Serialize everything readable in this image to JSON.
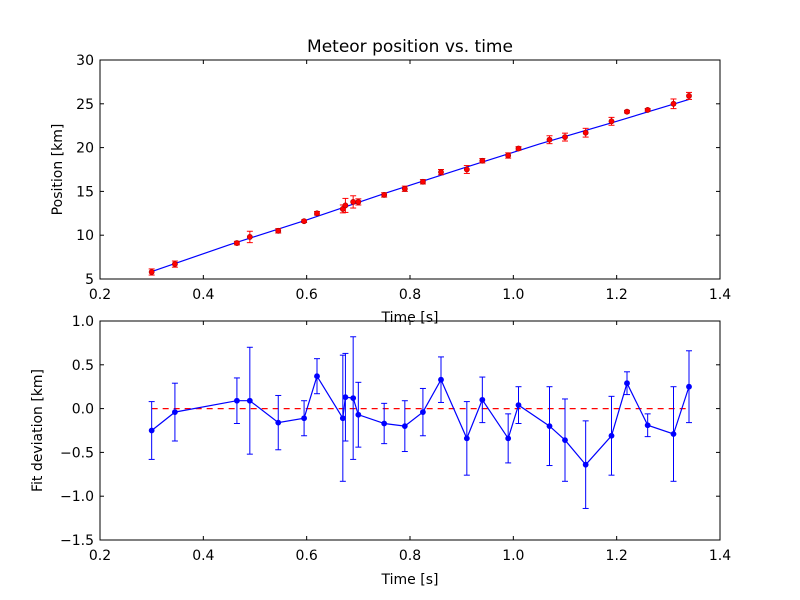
{
  "chart_data": [
    {
      "type": "scatter",
      "title": "Meteor position vs. time",
      "xlabel": "Time [s]",
      "ylabel": "Position [km]",
      "xlim": [
        0.2,
        1.4
      ],
      "ylim": [
        5,
        30
      ],
      "x_ticks": [
        "0.2",
        "0.4",
        "0.6",
        "0.8",
        "1.0",
        "1.2",
        "1.4"
      ],
      "y_ticks": [
        "5",
        "10",
        "15",
        "20",
        "25",
        "30"
      ],
      "grid": false,
      "colors": {
        "points": "#ff0000",
        "fit": "#0000ff"
      },
      "series": [
        {
          "kind": "errorbar-points",
          "x": [
            0.3,
            0.345,
            0.465,
            0.49,
            0.545,
            0.595,
            0.62,
            0.67,
            0.675,
            0.69,
            0.7,
            0.75,
            0.79,
            0.825,
            0.86,
            0.91,
            0.94,
            0.99,
            1.01,
            1.07,
            1.1,
            1.14,
            1.19,
            1.22,
            1.26,
            1.31,
            1.34
          ],
          "y": [
            5.8,
            6.7,
            9.1,
            9.8,
            10.5,
            11.6,
            12.5,
            13.0,
            13.4,
            13.8,
            13.8,
            14.6,
            15.3,
            16.1,
            17.2,
            17.5,
            18.5,
            19.1,
            19.9,
            20.9,
            21.2,
            21.7,
            23.0,
            24.1,
            24.3,
            25.0,
            25.9
          ],
          "err": [
            0.35,
            0.35,
            0.2,
            0.65,
            0.25,
            0.15,
            0.2,
            0.45,
            0.8,
            0.7,
            0.35,
            0.25,
            0.3,
            0.25,
            0.3,
            0.45,
            0.25,
            0.3,
            0.2,
            0.45,
            0.45,
            0.5,
            0.45,
            0.15,
            0.15,
            0.55,
            0.4
          ]
        },
        {
          "kind": "fit-line",
          "x": [
            0.3,
            0.45,
            0.6,
            0.75,
            0.9,
            1.05,
            1.2,
            1.34
          ],
          "y": [
            5.85,
            8.9,
            11.75,
            14.75,
            17.6,
            20.4,
            23.0,
            25.5
          ]
        }
      ]
    },
    {
      "type": "line",
      "title": "",
      "xlabel": "Time [s]",
      "ylabel": "Fit deviation [km]",
      "xlim": [
        0.2,
        1.4
      ],
      "ylim": [
        -1.5,
        1.0
      ],
      "x_ticks": [
        "0.2",
        "0.4",
        "0.6",
        "0.8",
        "1.0",
        "1.2",
        "1.4"
      ],
      "y_ticks": [
        "1.0",
        "0.5",
        "0.0",
        "−0.5",
        "−1.0",
        "−1.5"
      ],
      "grid": false,
      "colors": {
        "line": "#0000ff",
        "zero": "#ff0000"
      },
      "reference_line": 0.0,
      "series": [
        {
          "kind": "errorbar-line",
          "x": [
            0.3,
            0.345,
            0.465,
            0.49,
            0.545,
            0.595,
            0.62,
            0.67,
            0.675,
            0.69,
            0.7,
            0.75,
            0.79,
            0.825,
            0.86,
            0.91,
            0.94,
            0.99,
            1.01,
            1.07,
            1.1,
            1.14,
            1.19,
            1.22,
            1.26,
            1.31,
            1.34
          ],
          "y": [
            -0.25,
            -0.04,
            0.09,
            0.09,
            -0.16,
            -0.11,
            0.37,
            -0.11,
            0.13,
            0.12,
            -0.07,
            -0.17,
            -0.2,
            -0.04,
            0.33,
            -0.34,
            0.1,
            -0.34,
            0.04,
            -0.2,
            -0.36,
            -0.64,
            -0.31,
            0.29,
            -0.19,
            -0.29,
            0.25
          ],
          "err": [
            0.33,
            0.33,
            0.26,
            0.61,
            0.31,
            0.2,
            0.2,
            0.72,
            0.5,
            0.7,
            0.37,
            0.23,
            0.29,
            0.27,
            0.26,
            0.42,
            0.26,
            0.28,
            0.21,
            0.45,
            0.47,
            0.5,
            0.45,
            0.13,
            0.13,
            0.54,
            0.41
          ]
        }
      ]
    }
  ]
}
